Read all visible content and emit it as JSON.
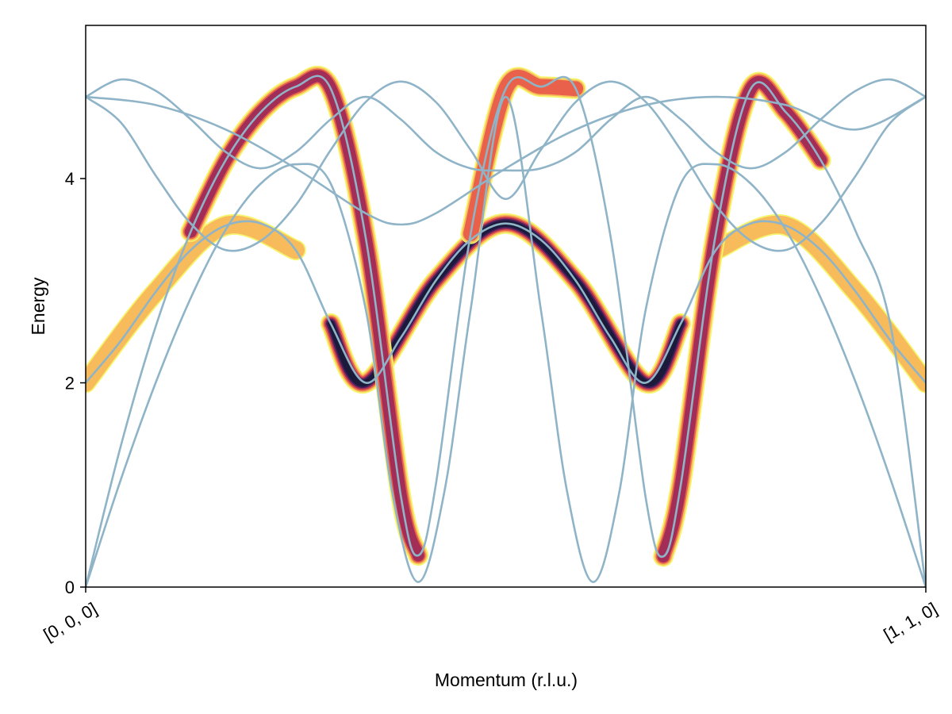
{
  "chart_data": {
    "type": "line",
    "title": "",
    "xlabel": "Momentum (r.l.u.)",
    "ylabel": "Energy",
    "xlim": [
      0,
      1
    ],
    "ylim": [
      0,
      5.5
    ],
    "x_ticks": [
      {
        "value": 0,
        "label": "[0, 0, 0]"
      },
      {
        "value": 1,
        "label": "[1, 1, 0]"
      }
    ],
    "y_ticks": [
      {
        "value": 0,
        "label": "0"
      },
      {
        "value": 2,
        "label": "2"
      },
      {
        "value": 4,
        "label": "4"
      }
    ],
    "grid": false,
    "legend": "none",
    "line_color": "#8fb4c8",
    "intensity_colormap": [
      "#f4f467",
      "#f7b75a",
      "#e85c4a",
      "#9e2a57",
      "#3b1f5c",
      "#1a1a3a"
    ],
    "series": [
      {
        "values": [
          [
            0.0,
            0.0
          ],
          [
            0.0417,
            1.38
          ],
          [
            0.0833,
            2.55
          ],
          [
            0.125,
            3.48
          ],
          [
            0.1667,
            4.18
          ],
          [
            0.2083,
            4.65
          ],
          [
            0.25,
            4.9
          ],
          [
            0.2917,
            4.88
          ],
          [
            0.3333,
            3.42
          ],
          [
            0.375,
            0.9
          ],
          [
            0.3958,
            0.31
          ],
          [
            0.4167,
            1.0
          ],
          [
            0.4583,
            3.46
          ],
          [
            0.5,
            4.88
          ],
          [
            0.5417,
            4.9
          ],
          [
            0.5833,
            4.88
          ],
          [
            0.625,
            3.42
          ],
          [
            0.6667,
            0.87
          ],
          [
            0.6875,
            0.3
          ],
          [
            0.7083,
            1.0
          ],
          [
            0.75,
            3.46
          ],
          [
            0.7917,
            4.88
          ],
          [
            0.8333,
            4.65
          ],
          [
            0.875,
            4.18
          ],
          [
            0.9167,
            3.48
          ],
          [
            0.9583,
            2.55
          ],
          [
            1.0,
            0.0
          ]
        ]
      },
      {
        "values": [
          [
            0.0,
            0.0
          ],
          [
            0.0417,
            1.05
          ],
          [
            0.0833,
            2.0
          ],
          [
            0.125,
            2.83
          ],
          [
            0.1667,
            3.5
          ],
          [
            0.2083,
            3.95
          ],
          [
            0.25,
            4.14
          ],
          [
            0.2917,
            3.95
          ],
          [
            0.3333,
            2.72
          ],
          [
            0.3646,
            0.94
          ],
          [
            0.3958,
            0.05
          ],
          [
            0.4271,
            0.94
          ],
          [
            0.4583,
            2.72
          ],
          [
            0.5,
            4.8
          ],
          [
            0.5417,
            2.72
          ],
          [
            0.5729,
            0.94
          ],
          [
            0.6042,
            0.05
          ],
          [
            0.6354,
            0.94
          ],
          [
            0.6667,
            2.72
          ],
          [
            0.7083,
            3.95
          ],
          [
            0.75,
            4.14
          ],
          [
            0.7917,
            3.95
          ],
          [
            0.8333,
            3.5
          ],
          [
            0.875,
            2.83
          ],
          [
            0.9167,
            2.0
          ],
          [
            0.9583,
            1.05
          ],
          [
            1.0,
            0.0
          ]
        ]
      },
      {
        "values": [
          [
            0.0,
            2.0
          ],
          [
            0.0417,
            2.41
          ],
          [
            0.0833,
            2.89
          ],
          [
            0.125,
            3.3
          ],
          [
            0.1667,
            3.54
          ],
          [
            0.2083,
            3.56
          ],
          [
            0.25,
            3.3
          ],
          [
            0.2917,
            2.58
          ],
          [
            0.3333,
            2.0
          ],
          [
            0.375,
            2.44
          ],
          [
            0.4167,
            3.0
          ],
          [
            0.4583,
            3.4
          ],
          [
            0.5,
            3.56
          ],
          [
            0.5417,
            3.4
          ],
          [
            0.5833,
            3.0
          ],
          [
            0.625,
            2.44
          ],
          [
            0.6667,
            2.0
          ],
          [
            0.7083,
            2.58
          ],
          [
            0.75,
            3.3
          ],
          [
            0.7917,
            3.56
          ],
          [
            0.8333,
            3.54
          ],
          [
            0.875,
            3.3
          ],
          [
            0.9167,
            2.89
          ],
          [
            0.9583,
            2.41
          ],
          [
            1.0,
            2.0
          ]
        ]
      },
      {
        "values": [
          [
            0.0,
            4.8
          ],
          [
            0.0417,
            4.55
          ],
          [
            0.0833,
            4.03
          ],
          [
            0.125,
            3.56
          ],
          [
            0.1667,
            3.3
          ],
          [
            0.2083,
            3.39
          ],
          [
            0.25,
            3.74
          ],
          [
            0.2917,
            4.28
          ],
          [
            0.3333,
            4.75
          ],
          [
            0.375,
            4.95
          ],
          [
            0.4167,
            4.75
          ],
          [
            0.4583,
            4.28
          ],
          [
            0.5,
            3.8
          ],
          [
            0.5417,
            4.28
          ],
          [
            0.5833,
            4.75
          ],
          [
            0.625,
            4.95
          ],
          [
            0.6667,
            4.75
          ],
          [
            0.7083,
            4.28
          ],
          [
            0.75,
            3.74
          ],
          [
            0.7917,
            3.39
          ],
          [
            0.8333,
            3.3
          ],
          [
            0.875,
            3.56
          ],
          [
            0.9167,
            4.03
          ],
          [
            0.9583,
            4.55
          ],
          [
            1.0,
            4.8
          ]
        ]
      },
      {
        "values": [
          [
            0.0,
            4.8
          ],
          [
            0.0417,
            4.97
          ],
          [
            0.0833,
            4.86
          ],
          [
            0.125,
            4.58
          ],
          [
            0.1667,
            4.26
          ],
          [
            0.2083,
            4.1
          ],
          [
            0.25,
            4.26
          ],
          [
            0.2917,
            4.58
          ],
          [
            0.3333,
            4.8
          ],
          [
            0.375,
            4.58
          ],
          [
            0.4167,
            4.26
          ],
          [
            0.4583,
            4.1
          ],
          [
            0.5,
            4.08
          ],
          [
            0.5417,
            4.1
          ],
          [
            0.5833,
            4.26
          ],
          [
            0.625,
            4.58
          ],
          [
            0.6667,
            4.8
          ],
          [
            0.7083,
            4.58
          ],
          [
            0.75,
            4.26
          ],
          [
            0.7917,
            4.1
          ],
          [
            0.8333,
            4.26
          ],
          [
            0.875,
            4.58
          ],
          [
            0.9167,
            4.86
          ],
          [
            0.9583,
            4.97
          ],
          [
            1.0,
            4.8
          ]
        ]
      },
      {
        "values": [
          [
            0.0,
            4.8
          ],
          [
            0.0833,
            4.72
          ],
          [
            0.1667,
            4.48
          ],
          [
            0.25,
            4.1
          ],
          [
            0.3333,
            3.66
          ],
          [
            0.375,
            3.55
          ],
          [
            0.4167,
            3.66
          ],
          [
            0.5,
            4.1
          ],
          [
            0.5833,
            4.48
          ],
          [
            0.6667,
            4.72
          ],
          [
            0.75,
            4.8
          ],
          [
            0.8333,
            4.72
          ],
          [
            0.9167,
            4.48
          ],
          [
            1.0,
            4.8
          ]
        ]
      }
    ],
    "intensity_bands": [
      {
        "values": [
          [
            0.0,
            2.0
          ],
          [
            0.0833,
            2.89
          ],
          [
            0.1667,
            3.54
          ],
          [
            0.25,
            3.3
          ]
        ],
        "max_intensity": 0.1
      },
      {
        "values": [
          [
            0.2917,
            2.58
          ],
          [
            0.3333,
            2.0
          ],
          [
            0.4167,
            3.0
          ],
          [
            0.5,
            3.56
          ],
          [
            0.5833,
            3.0
          ],
          [
            0.6667,
            2.0
          ],
          [
            0.7083,
            2.58
          ]
        ],
        "max_intensity": 1.0
      },
      {
        "values": [
          [
            0.75,
            3.3
          ],
          [
            0.8333,
            3.54
          ],
          [
            0.9167,
            2.89
          ],
          [
            1.0,
            2.0
          ]
        ],
        "max_intensity": 0.1
      },
      {
        "values": [
          [
            0.125,
            3.48
          ],
          [
            0.1667,
            4.18
          ],
          [
            0.2083,
            4.65
          ],
          [
            0.25,
            4.9
          ],
          [
            0.2917,
            4.88
          ],
          [
            0.3333,
            3.42
          ],
          [
            0.375,
            0.9
          ],
          [
            0.3958,
            0.31
          ]
        ],
        "max_intensity": 0.5
      },
      {
        "values": [
          [
            0.4583,
            3.46
          ],
          [
            0.5,
            4.88
          ],
          [
            0.5417,
            4.9
          ],
          [
            0.5833,
            4.88
          ]
        ],
        "max_intensity": 0.35
      },
      {
        "values": [
          [
            0.6875,
            0.3
          ],
          [
            0.7083,
            1.0
          ],
          [
            0.75,
            3.46
          ],
          [
            0.7917,
            4.88
          ],
          [
            0.8333,
            4.65
          ],
          [
            0.875,
            4.18
          ]
        ],
        "max_intensity": 0.5
      }
    ]
  }
}
